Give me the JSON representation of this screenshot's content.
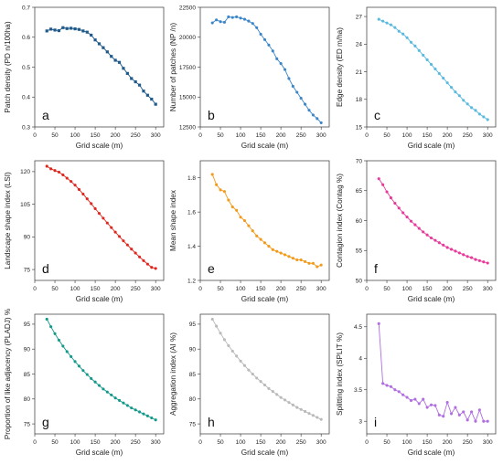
{
  "chart_data": [
    {
      "type": "line",
      "letter": "a",
      "xlabel": "Grid scale (m)",
      "ylabel": "Patch density (PD n/100ha)",
      "color": "#1f5a8a",
      "xlim": [
        0,
        320
      ],
      "ylim": [
        0.3,
        0.7
      ],
      "xticks": [
        0,
        50,
        100,
        150,
        200,
        250,
        300
      ],
      "yticks": [
        0.3,
        0.4,
        0.5,
        0.6,
        0.7
      ],
      "ytick_labels": [
        "0.3",
        "0.4",
        "0.5",
        "0.6",
        "0.7"
      ],
      "x": [
        30,
        40,
        50,
        60,
        70,
        80,
        90,
        100,
        110,
        120,
        130,
        140,
        150,
        160,
        170,
        180,
        190,
        200,
        210,
        220,
        230,
        240,
        250,
        260,
        270,
        280,
        290,
        300
      ],
      "values": [
        0.621,
        0.627,
        0.624,
        0.622,
        0.632,
        0.629,
        0.63,
        0.628,
        0.626,
        0.621,
        0.617,
        0.607,
        0.591,
        0.578,
        0.565,
        0.551,
        0.536,
        0.523,
        0.516,
        0.496,
        0.479,
        0.462,
        0.451,
        0.44,
        0.42,
        0.406,
        0.393,
        0.376
      ]
    },
    {
      "type": "line",
      "letter": "b",
      "xlabel": "Grid scale (m)",
      "ylabel": "Number of patches (NP /n)",
      "color": "#3a86c8",
      "xlim": [
        0,
        320
      ],
      "ylim": [
        12500,
        22500
      ],
      "xticks": [
        0,
        50,
        100,
        150,
        200,
        250,
        300
      ],
      "yticks": [
        12500,
        15000,
        17500,
        20000,
        22500
      ],
      "ytick_labels": [
        "12500",
        "15000",
        "17500",
        "20000",
        "22500"
      ],
      "x": [
        30,
        40,
        50,
        60,
        70,
        80,
        90,
        100,
        110,
        120,
        130,
        140,
        150,
        160,
        170,
        180,
        190,
        200,
        210,
        220,
        230,
        240,
        250,
        260,
        270,
        280,
        290,
        300
      ],
      "values": [
        21200,
        21450,
        21300,
        21250,
        21700,
        21650,
        21700,
        21600,
        21500,
        21350,
        21150,
        20800,
        20250,
        19800,
        19350,
        18850,
        18200,
        17800,
        17300,
        16550,
        15900,
        15400,
        14900,
        14400,
        13900,
        13500,
        13200,
        12850
      ]
    },
    {
      "type": "line",
      "letter": "c",
      "xlabel": "Grid scale (m)",
      "ylabel": "Edge density (ED m/ha)",
      "color": "#5ab9df",
      "xlim": [
        0,
        320
      ],
      "ylim": [
        15,
        28
      ],
      "xticks": [
        0,
        50,
        100,
        150,
        200,
        250,
        300
      ],
      "yticks": [
        15,
        18,
        21,
        24,
        27
      ],
      "ytick_labels": [
        "15",
        "18",
        "21",
        "24",
        "27"
      ],
      "x": [
        30,
        40,
        50,
        60,
        70,
        80,
        90,
        100,
        110,
        120,
        130,
        140,
        150,
        160,
        170,
        180,
        190,
        200,
        210,
        220,
        230,
        240,
        250,
        260,
        270,
        280,
        290,
        300
      ],
      "values": [
        26.7,
        26.5,
        26.3,
        26.1,
        25.8,
        25.4,
        25.1,
        24.7,
        24.2,
        23.8,
        23.3,
        22.8,
        22.3,
        21.8,
        21.3,
        20.8,
        20.3,
        19.8,
        19.3,
        18.8,
        18.4,
        17.9,
        17.5,
        17.1,
        16.8,
        16.4,
        16.1,
        15.8
      ]
    },
    {
      "type": "line",
      "letter": "d",
      "xlabel": "Grid scale (m)",
      "ylabel": "Landscape shape index (LSI)",
      "color": "#e0251e",
      "xlim": [
        0,
        320
      ],
      "ylim": [
        70,
        125
      ],
      "xticks": [
        0,
        50,
        100,
        150,
        200,
        250,
        300
      ],
      "yticks": [
        75,
        90,
        105,
        120
      ],
      "ytick_labels": [
        "75",
        "90",
        "105",
        "120"
      ],
      "x": [
        30,
        40,
        50,
        60,
        70,
        80,
        90,
        100,
        110,
        120,
        130,
        140,
        150,
        160,
        170,
        180,
        190,
        200,
        210,
        220,
        230,
        240,
        250,
        260,
        270,
        280,
        290,
        300
      ],
      "values": [
        122.5,
        121.3,
        120.5,
        119.8,
        118.5,
        117.0,
        115.5,
        113.8,
        111.8,
        109.7,
        107.5,
        105.3,
        103.0,
        100.8,
        98.6,
        96.4,
        94.3,
        92.2,
        90.2,
        88.2,
        86.3,
        84.4,
        82.6,
        80.8,
        79.1,
        77.5,
        76.0,
        75.5
      ]
    },
    {
      "type": "line",
      "letter": "e",
      "xlabel": "Grid scale (m)",
      "ylabel": "Mean shape index",
      "color": "#f39a1b",
      "xlim": [
        0,
        320
      ],
      "ylim": [
        1.2,
        1.9
      ],
      "xticks": [
        0,
        50,
        100,
        150,
        200,
        250,
        300
      ],
      "yticks": [
        1.2,
        1.4,
        1.6,
        1.8
      ],
      "ytick_labels": [
        "1.2",
        "1.4",
        "1.6",
        "1.8"
      ],
      "x": [
        30,
        40,
        50,
        60,
        70,
        80,
        90,
        100,
        110,
        120,
        130,
        140,
        150,
        160,
        170,
        180,
        190,
        200,
        210,
        220,
        230,
        240,
        250,
        260,
        270,
        280,
        290,
        300
      ],
      "values": [
        1.82,
        1.76,
        1.73,
        1.72,
        1.67,
        1.63,
        1.61,
        1.57,
        1.55,
        1.52,
        1.49,
        1.46,
        1.44,
        1.42,
        1.4,
        1.38,
        1.37,
        1.36,
        1.35,
        1.34,
        1.33,
        1.32,
        1.32,
        1.31,
        1.3,
        1.3,
        1.28,
        1.29
      ]
    },
    {
      "type": "line",
      "letter": "f",
      "xlabel": "Grid scale (m)",
      "ylabel": "Contagion index (Contag %)",
      "color": "#e8399b",
      "xlim": [
        0,
        320
      ],
      "ylim": [
        50,
        70
      ],
      "xticks": [
        0,
        50,
        100,
        150,
        200,
        250,
        300
      ],
      "yticks": [
        50,
        55,
        60,
        65,
        70
      ],
      "ytick_labels": [
        "50",
        "55",
        "60",
        "65",
        "70"
      ],
      "x": [
        30,
        40,
        50,
        60,
        70,
        80,
        90,
        100,
        110,
        120,
        130,
        140,
        150,
        160,
        170,
        180,
        190,
        200,
        210,
        220,
        230,
        240,
        250,
        260,
        270,
        280,
        290,
        300
      ],
      "values": [
        67.0,
        66.0,
        64.8,
        63.8,
        62.9,
        62.1,
        61.3,
        60.6,
        59.9,
        59.3,
        58.7,
        58.1,
        57.6,
        57.1,
        56.7,
        56.3,
        55.9,
        55.5,
        55.2,
        54.9,
        54.6,
        54.3,
        54.0,
        53.8,
        53.5,
        53.3,
        53.1,
        52.9
      ]
    },
    {
      "type": "line",
      "letter": "g",
      "xlabel": "Grid scale (m)",
      "ylabel": "Proportion of like adjacency (PLADJ) %",
      "color": "#12998a",
      "xlim": [
        0,
        320
      ],
      "ylim": [
        73,
        97
      ],
      "xticks": [
        0,
        50,
        100,
        150,
        200,
        250,
        300
      ],
      "yticks": [
        75,
        80,
        85,
        90,
        95
      ],
      "ytick_labels": [
        "75",
        "80",
        "85",
        "90",
        "95"
      ],
      "x": [
        30,
        40,
        50,
        60,
        70,
        80,
        90,
        100,
        110,
        120,
        130,
        140,
        150,
        160,
        170,
        180,
        190,
        200,
        210,
        220,
        230,
        240,
        250,
        260,
        270,
        280,
        290,
        300
      ],
      "values": [
        96.0,
        94.5,
        93.1,
        91.8,
        90.6,
        89.5,
        88.5,
        87.5,
        86.6,
        85.7,
        84.9,
        84.1,
        83.4,
        82.7,
        82.0,
        81.4,
        80.8,
        80.2,
        79.7,
        79.2,
        78.7,
        78.2,
        77.8,
        77.4,
        77.0,
        76.6,
        76.2,
        75.8
      ]
    },
    {
      "type": "line",
      "letter": "h",
      "xlabel": "Grid scale (m)",
      "ylabel": "Aggregation index (AI %)",
      "color": "#b9b9b9",
      "xlim": [
        0,
        320
      ],
      "ylim": [
        73,
        97
      ],
      "xticks": [
        0,
        50,
        100,
        150,
        200,
        250,
        300
      ],
      "yticks": [
        75,
        80,
        85,
        90,
        95
      ],
      "ytick_labels": [
        "75",
        "80",
        "85",
        "90",
        "95"
      ],
      "x": [
        30,
        40,
        50,
        60,
        70,
        80,
        90,
        100,
        110,
        120,
        130,
        140,
        150,
        160,
        170,
        180,
        190,
        200,
        210,
        220,
        230,
        240,
        250,
        260,
        270,
        280,
        290,
        300
      ],
      "values": [
        96.0,
        94.6,
        93.2,
        91.9,
        90.7,
        89.6,
        88.6,
        87.6,
        86.7,
        85.8,
        85.0,
        84.2,
        83.5,
        82.8,
        82.1,
        81.5,
        80.9,
        80.3,
        79.8,
        79.3,
        78.8,
        78.3,
        77.9,
        77.5,
        77.1,
        76.7,
        76.3,
        75.9
      ]
    },
    {
      "type": "line",
      "letter": "i",
      "xlabel": "Grid scale (m)",
      "ylabel": "Splitting index (SPLIT %)",
      "color": "#b06ee0",
      "xlim": [
        0,
        320
      ],
      "ylim": [
        2.8,
        4.7
      ],
      "xticks": [
        0,
        50,
        100,
        150,
        200,
        250,
        300
      ],
      "yticks": [
        3.0,
        3.5,
        4.0,
        4.5
      ],
      "ytick_labels": [
        "3",
        "3.5",
        "4",
        "4.5"
      ],
      "x": [
        30,
        40,
        50,
        60,
        70,
        80,
        90,
        100,
        110,
        120,
        130,
        140,
        150,
        160,
        170,
        180,
        190,
        200,
        210,
        220,
        230,
        240,
        250,
        260,
        270,
        280,
        290,
        300
      ],
      "values": [
        4.55,
        3.6,
        3.57,
        3.55,
        3.5,
        3.47,
        3.42,
        3.38,
        3.33,
        3.35,
        3.28,
        3.35,
        3.22,
        3.26,
        3.25,
        3.1,
        3.08,
        3.3,
        3.12,
        3.22,
        3.1,
        3.15,
        3.02,
        3.15,
        3.0,
        3.18,
        3.0,
        3.0
      ]
    }
  ]
}
